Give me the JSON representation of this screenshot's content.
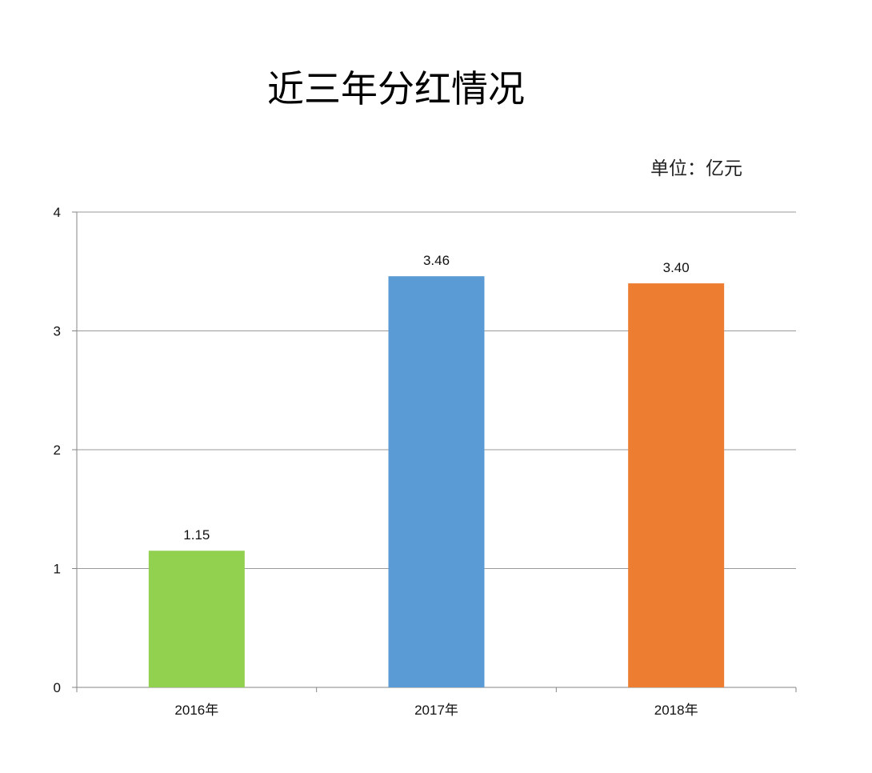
{
  "chart_data": {
    "type": "bar",
    "title": "近三年分红情况",
    "unit_label": "单位：亿元",
    "categories": [
      "2016年",
      "2017年",
      "2018年"
    ],
    "values": [
      1.15,
      3.46,
      3.4
    ],
    "data_labels": [
      "1.15",
      "3.46",
      "3.40"
    ],
    "colors": [
      "#92d050",
      "#5b9bd5",
      "#ed7d31"
    ],
    "xlabel": "",
    "ylabel": "",
    "ylim": [
      0,
      4
    ],
    "yticks": [
      0,
      1,
      2,
      3,
      4
    ],
    "grid": true,
    "legend": "none"
  }
}
